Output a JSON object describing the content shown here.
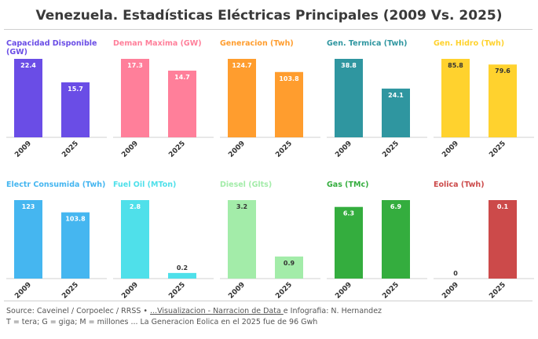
{
  "title": "Venezuela. Estadísticas Eléctricas Principales (2009 Vs. 2025)",
  "footer": {
    "line1_prefix": "Source: Caveinel / Corpoelec / RRSS • ",
    "line1_link": "...Visualizacion - Narracion de Data ",
    "line1_suffix": "e Infografia: N. Hernandez",
    "line2": "T = tera; G = giga; M = millones ... La Generacion Eolica en el 2025 fue de 96 Gwh"
  },
  "chart_data": [
    {
      "type": "bar",
      "title": "Capacidad Disponible (GW)",
      "categories": [
        "2009",
        "2025"
      ],
      "values": [
        22.4,
        15.7
      ],
      "labels": [
        "22.4",
        "15.7"
      ],
      "color": "#6a4de6"
    },
    {
      "type": "bar",
      "title": "Deman Maxima (GW)",
      "categories": [
        "2009",
        "2025"
      ],
      "values": [
        17.3,
        14.7
      ],
      "labels": [
        "17.3",
        "14.7"
      ],
      "color": "#ff7f9a"
    },
    {
      "type": "bar",
      "title": "Generacion (Twh)",
      "categories": [
        "2009",
        "2025"
      ],
      "values": [
        124.7,
        103.8
      ],
      "labels": [
        "124.7",
        "103.8"
      ],
      "color": "#ff9d2e"
    },
    {
      "type": "bar",
      "title": "Gen. Termica (Twh)",
      "categories": [
        "2009",
        "2025"
      ],
      "values": [
        38.8,
        24.1
      ],
      "labels": [
        "38.8",
        "24.1"
      ],
      "color": "#2f96a0"
    },
    {
      "type": "bar",
      "title": "Gen. Hidro (Twh)",
      "categories": [
        "2009",
        "2025"
      ],
      "values": [
        85.8,
        79.6
      ],
      "labels": [
        "85.8",
        "79.6"
      ],
      "color": "#ffd22e"
    },
    {
      "type": "bar",
      "title": "Electr Consumida (Twh)",
      "categories": [
        "2009",
        "2025"
      ],
      "values": [
        123,
        103.8
      ],
      "labels": [
        "123",
        "103.8"
      ],
      "color": "#45b6f0"
    },
    {
      "type": "bar",
      "title": "Fuel Oil (MTon)",
      "categories": [
        "2009",
        "2025"
      ],
      "values": [
        2.8,
        0.2
      ],
      "labels": [
        "2.8",
        "0.2"
      ],
      "color": "#4fe0ea"
    },
    {
      "type": "bar",
      "title": "Diesel (Glts)",
      "categories": [
        "2009",
        "2025"
      ],
      "values": [
        3.2,
        0.9
      ],
      "labels": [
        "3.2",
        "0.9"
      ],
      "color": "#a3eca9"
    },
    {
      "type": "bar",
      "title": "Gas (TMc)",
      "categories": [
        "2009",
        "2025"
      ],
      "values": [
        6.3,
        6.9
      ],
      "labels": [
        "6.3",
        "6.9"
      ],
      "color": "#34ad3e"
    },
    {
      "type": "bar",
      "title": "Eolica (Twh)",
      "categories": [
        "2009",
        "2025"
      ],
      "values": [
        0,
        0.1
      ],
      "labels": [
        "0",
        "0.1"
      ],
      "color": "#cc4a4a"
    }
  ]
}
